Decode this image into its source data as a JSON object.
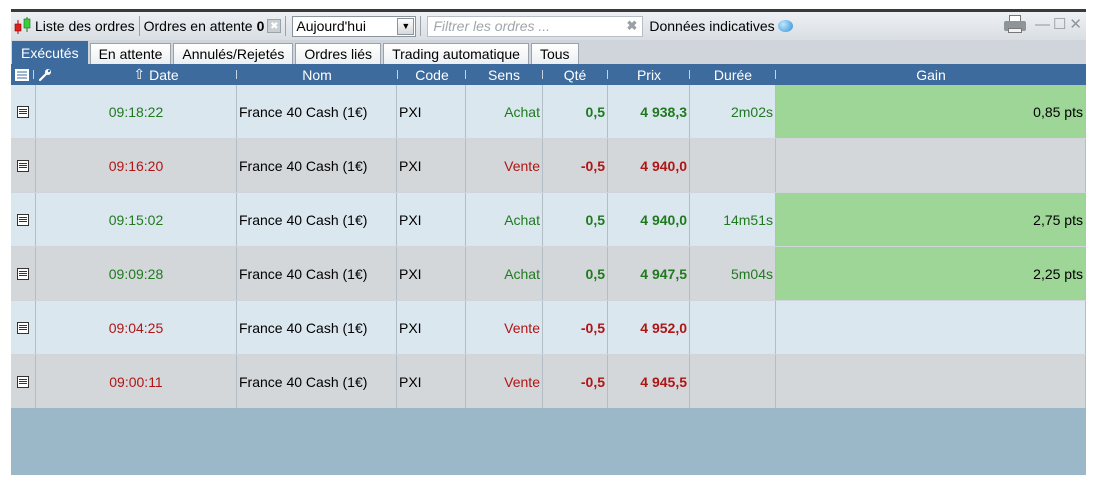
{
  "toolbar": {
    "orders_list_label": "Liste des ordres",
    "pending_label": "Ordres en attente",
    "pending_count": "0",
    "period_selected": "Aujourd'hui",
    "filter_placeholder": "Filtrer les ordres ...",
    "indicative_label": "Données indicatives"
  },
  "tabs": [
    {
      "label": "Exécutés",
      "active": true
    },
    {
      "label": "En attente"
    },
    {
      "label": "Annulés/Rejetés"
    },
    {
      "label": "Ordres liés"
    },
    {
      "label": "Trading automatique"
    },
    {
      "label": "Tous"
    }
  ],
  "columns": {
    "date": "Date",
    "name": "Nom",
    "code": "Code",
    "side": "Sens",
    "qty": "Qté",
    "price": "Prix",
    "duration": "Durée",
    "gain": "Gain"
  },
  "rows": [
    {
      "time": "09:18:22",
      "name": "France 40 Cash (1€)",
      "code": "PXI",
      "side": "Achat",
      "qty": "0,5",
      "price": "4 938,3",
      "duration": "2m02s",
      "gain": "0,85 pts",
      "color": "green"
    },
    {
      "time": "09:16:20",
      "name": "France 40 Cash (1€)",
      "code": "PXI",
      "side": "Vente",
      "qty": "-0,5",
      "price": "4 940,0",
      "duration": "",
      "gain": "",
      "color": "red"
    },
    {
      "time": "09:15:02",
      "name": "France 40 Cash (1€)",
      "code": "PXI",
      "side": "Achat",
      "qty": "0,5",
      "price": "4 940,0",
      "duration": "14m51s",
      "gain": "2,75 pts",
      "color": "green"
    },
    {
      "time": "09:09:28",
      "name": "France 40 Cash (1€)",
      "code": "PXI",
      "side": "Achat",
      "qty": "0,5",
      "price": "4 947,5",
      "duration": "5m04s",
      "gain": "2,25 pts",
      "color": "green"
    },
    {
      "time": "09:04:25",
      "name": "France 40 Cash (1€)",
      "code": "PXI",
      "side": "Vente",
      "qty": "-0,5",
      "price": "4 952,0",
      "duration": "",
      "gain": "",
      "color": "red"
    },
    {
      "time": "09:00:11",
      "name": "France 40 Cash (1€)",
      "code": "PXI",
      "side": "Vente",
      "qty": "-0,5",
      "price": "4 945,5",
      "duration": "",
      "gain": "",
      "color": "red"
    }
  ],
  "colors": {
    "header_blue": "#3d6b9e",
    "positive_gain_bg": "#9dd697",
    "buy_green": "#1f7a1f",
    "sell_red": "#b01515"
  },
  "icons": [
    "orders-candle-icon",
    "clear-pending-icon",
    "dropdown-arrow-icon",
    "clear-filter-icon",
    "info-bubble-icon",
    "printer-icon",
    "minimize-icon",
    "maximize-icon",
    "close-icon",
    "columns-icon",
    "wrench-icon",
    "sort-up-icon",
    "order-detail-icon"
  ]
}
